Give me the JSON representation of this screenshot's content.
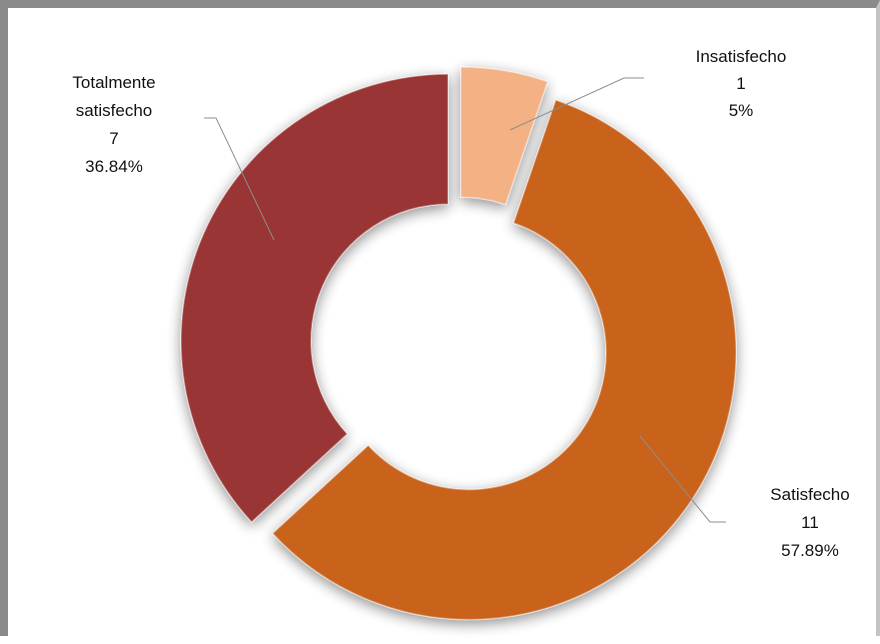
{
  "chart_data": {
    "type": "pie",
    "variant": "doughnut",
    "exploded": true,
    "slices": [
      {
        "label": "Insatisfecho",
        "value": 1,
        "percent_label": "5%",
        "color": "#f4b183"
      },
      {
        "label": "Satisfecho",
        "value": 11,
        "percent_label": "57.89%",
        "color": "#c9641f"
      },
      {
        "label": "Totalmente satisfecho",
        "value": 7,
        "percent_label": "36.84%",
        "color": "#9a3434"
      }
    ],
    "data_labels": {
      "insatisfecho": {
        "name": "Insatisfecho",
        "count": "1",
        "percent": "5%"
      },
      "satisfecho": {
        "name": "Satisfecho",
        "count": "11",
        "percent": "57.89%"
      },
      "totalmente": {
        "name_line1": "Totalmente",
        "name_line2": "satisfecho",
        "count": "7",
        "percent": "36.84%"
      }
    },
    "legend": "none"
  }
}
